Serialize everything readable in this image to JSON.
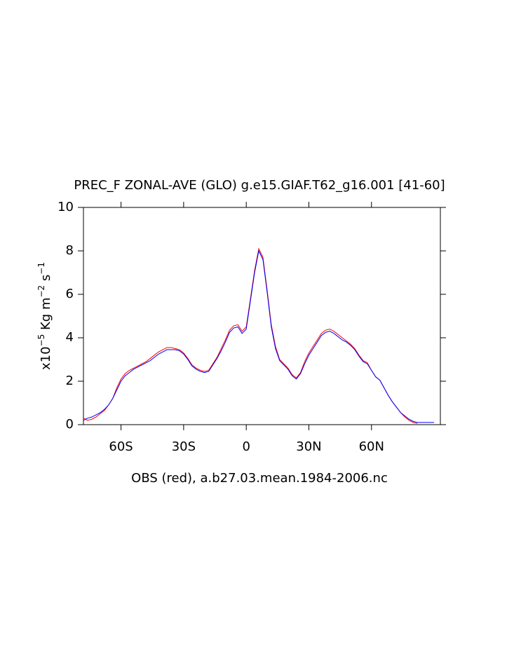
{
  "chart_data": {
    "type": "line",
    "title": "PREC_F ZONAL-AVE (GLO) g.e15.GIAF.T62_g16.001 [41-60]",
    "x_label": "OBS (red), a.b27.03.mean.1984-2006.nc",
    "y_label": [
      "x10",
      "−5",
      " Kg m",
      "−2",
      " s",
      "−1"
    ],
    "x": [
      -78,
      -76,
      -74,
      -72,
      -70,
      -68,
      -66,
      -64,
      -62,
      -60,
      -58,
      -56,
      -54,
      -52,
      -50,
      -48,
      -46,
      -44,
      -42,
      -40,
      -38,
      -36,
      -34,
      -32,
      -30,
      -28,
      -26,
      -24,
      -22,
      -20,
      -18,
      -16,
      -14,
      -12,
      -10,
      -8,
      -6,
      -4,
      -2,
      0,
      2,
      4,
      6,
      8,
      10,
      12,
      14,
      16,
      18,
      20,
      22,
      24,
      26,
      28,
      30,
      32,
      34,
      36,
      38,
      40,
      42,
      44,
      46,
      48,
      50,
      52,
      54,
      56,
      58,
      60,
      62,
      64,
      66,
      68,
      70,
      72,
      74,
      76,
      78,
      80,
      82,
      84,
      86,
      88,
      90
    ],
    "series": [
      {
        "name": "OBS",
        "color": "#ff0000",
        "values": [
          0.3,
          0.2,
          0.25,
          0.35,
          0.5,
          0.65,
          0.9,
          1.2,
          1.7,
          2.1,
          2.35,
          2.5,
          2.6,
          2.7,
          2.8,
          2.9,
          3.05,
          3.2,
          3.35,
          3.45,
          3.55,
          3.55,
          3.5,
          3.45,
          3.3,
          3.05,
          2.75,
          2.6,
          2.5,
          2.45,
          2.5,
          2.8,
          3.1,
          3.5,
          3.9,
          4.35,
          4.55,
          4.6,
          4.3,
          4.5,
          5.8,
          7.1,
          8.1,
          7.7,
          6.2,
          4.6,
          3.6,
          3.0,
          2.8,
          2.6,
          2.3,
          2.15,
          2.4,
          2.9,
          3.3,
          3.6,
          3.9,
          4.2,
          4.35,
          4.4,
          4.3,
          4.15,
          4.0,
          3.85,
          3.7,
          3.5,
          3.2,
          2.95,
          2.85,
          2.5,
          2.2,
          2.05,
          1.7,
          1.35,
          1.05,
          0.8,
          0.55,
          0.35,
          0.2,
          0.1,
          0.05,
          null,
          null,
          null,
          null
        ]
      },
      {
        "name": "g.e15.GIAF.T62_g16.001",
        "color": "#0000ff",
        "values": [
          0.2,
          0.3,
          0.35,
          0.45,
          0.55,
          0.7,
          0.9,
          1.2,
          1.6,
          2.0,
          2.25,
          2.4,
          2.55,
          2.65,
          2.75,
          2.85,
          2.95,
          3.1,
          3.25,
          3.35,
          3.45,
          3.45,
          3.45,
          3.4,
          3.25,
          3.0,
          2.7,
          2.55,
          2.45,
          2.4,
          2.45,
          2.75,
          3.05,
          3.4,
          3.8,
          4.25,
          4.45,
          4.5,
          4.2,
          4.4,
          5.7,
          7.0,
          8.0,
          7.6,
          6.1,
          4.5,
          3.5,
          2.95,
          2.75,
          2.55,
          2.25,
          2.1,
          2.35,
          2.8,
          3.2,
          3.5,
          3.8,
          4.1,
          4.25,
          4.3,
          4.2,
          4.05,
          3.9,
          3.8,
          3.65,
          3.45,
          3.15,
          2.9,
          2.8,
          2.5,
          2.2,
          2.05,
          1.7,
          1.35,
          1.05,
          0.8,
          0.55,
          0.4,
          0.25,
          0.15,
          0.1,
          0.1,
          0.1,
          0.1,
          0.1
        ]
      }
    ],
    "xlim": [
      -78,
      93
    ],
    "xticks": [
      {
        "value": -60,
        "label": "60S"
      },
      {
        "value": -30,
        "label": "30S"
      },
      0,
      {
        "value": 30,
        "label": "30N"
      },
      {
        "value": 60,
        "label": "60N"
      }
    ],
    "ylim": [
      0,
      10
    ],
    "yticks": [
      0,
      2,
      4,
      6,
      8,
      10
    ]
  }
}
